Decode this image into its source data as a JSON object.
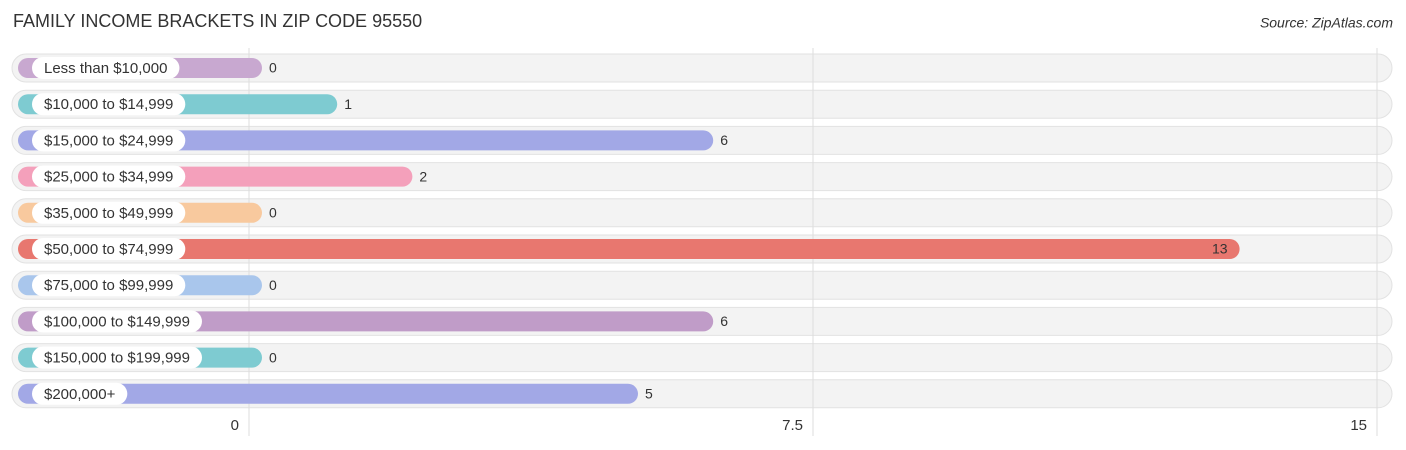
{
  "chart_data": {
    "type": "bar",
    "orientation": "horizontal",
    "title": "FAMILY INCOME BRACKETS IN ZIP CODE 95550",
    "source": "Source: ZipAtlas.com",
    "categories": [
      "Less than $10,000",
      "$10,000 to $14,999",
      "$15,000 to $24,999",
      "$25,000 to $34,999",
      "$35,000 to $49,999",
      "$50,000 to $74,999",
      "$75,000 to $99,999",
      "$100,000 to $149,999",
      "$150,000 to $199,999",
      "$200,000+"
    ],
    "values": [
      0,
      1,
      6,
      2,
      0,
      13,
      0,
      6,
      0,
      5
    ],
    "colors": [
      "#c8a8d0",
      "#7ecbd1",
      "#a2a8e6",
      "#f4a0bb",
      "#f8c99e",
      "#e8776f",
      "#a9c6ec",
      "#c09cc8",
      "#7ecbd1",
      "#a2a8e6"
    ],
    "xlim": [
      0,
      15
    ],
    "xticks": [
      0,
      7.5,
      15
    ],
    "grid": true
  }
}
